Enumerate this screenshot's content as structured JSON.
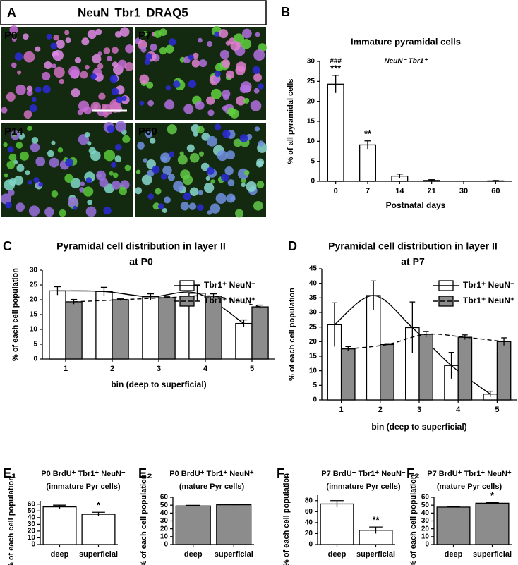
{
  "image_panel": {
    "label": "A",
    "legend": [
      {
        "text": "NeuN",
        "color": "#6ee33a"
      },
      {
        "text": "Tbr1",
        "color": "#e8336a"
      },
      {
        "text": "DRAQ5",
        "color": "#3a3ae0"
      }
    ],
    "images": [
      "P0",
      "P7",
      "P14",
      "P60"
    ]
  },
  "chart_data": [
    {
      "panel": "B",
      "type": "bar",
      "title": "Immature pyramidal cells",
      "subtitle": "NeuN⁻ Tbr1⁺",
      "x_label": "Postnatal days",
      "y_label": "% of all pyramidal cells",
      "categories": [
        "0",
        "7",
        "14",
        "21",
        "30",
        "60"
      ],
      "values": [
        24.3,
        9.1,
        1.3,
        0.2,
        0,
        0.1
      ],
      "errors": [
        2.2,
        1.0,
        0.5,
        0.2,
        0,
        0.1
      ],
      "significance": [
        "***",
        "**",
        null,
        null,
        null,
        null
      ],
      "significance_upper": [
        "###",
        null,
        null,
        null,
        null,
        null
      ],
      "color": "#ffffff",
      "ylim": [
        0,
        30
      ],
      "yticks": [
        0,
        5,
        10,
        15,
        20,
        25,
        30
      ]
    },
    {
      "panel": "C",
      "type": "bar",
      "title": "Pyramidal cell distribution in layer II",
      "subtitle": "at P0",
      "x_label": "bin (deep to superficial)",
      "y_label": "% of each cell population",
      "categories": [
        "1",
        "2",
        "3",
        "4",
        "5"
      ],
      "series": [
        {
          "name": "Tbr1⁺ NeuN⁻",
          "color": "#ffffff",
          "line_style": "solid",
          "values": [
            23,
            22.8,
            21,
            22.2,
            12
          ],
          "errors": [
            1.4,
            1.4,
            1.0,
            2.8,
            1.2
          ]
        },
        {
          "name": "Tbr1⁺ NeuN⁺",
          "color": "#8c8c8c",
          "line_style": "dashed",
          "values": [
            19.3,
            20,
            20.7,
            21.2,
            17.6
          ],
          "errors": [
            0.8,
            0.3,
            0.3,
            0.8,
            0.6
          ]
        }
      ],
      "ylim": [
        0,
        30
      ],
      "yticks": [
        0,
        5,
        10,
        15,
        20,
        25,
        30
      ]
    },
    {
      "panel": "D",
      "type": "bar",
      "title": "Pyramidal cell distribution in layer II",
      "subtitle": "at P7",
      "x_label": "bin (deep to superficial)",
      "y_label": "% of each cell population",
      "categories": [
        "1",
        "2",
        "3",
        "4",
        "5"
      ],
      "series": [
        {
          "name": "Tbr1⁺ NeuN⁻",
          "color": "#ffffff",
          "line_style": "solid",
          "values": [
            25.8,
            35.8,
            24.8,
            11.8,
            2
          ],
          "errors": [
            7.5,
            5,
            8.8,
            4.5,
            1
          ]
        },
        {
          "name": "Tbr1⁺ NeuN⁺",
          "color": "#8c8c8c",
          "line_style": "dashed",
          "values": [
            17.5,
            19,
            22.5,
            21.5,
            20
          ],
          "errors": [
            0.8,
            0.3,
            1.0,
            0.8,
            1.3
          ]
        }
      ],
      "ylim": [
        0,
        45
      ],
      "yticks": [
        0,
        5,
        10,
        15,
        20,
        25,
        30,
        35,
        40,
        45
      ]
    },
    {
      "panel": "E₁",
      "type": "bar",
      "title": "P0 BrdU⁺ Tbr1⁺ NeuN⁻",
      "subtitle": "(immature Pyr cells)",
      "y_label": "% of each cell population",
      "categories": [
        "deep",
        "superficial"
      ],
      "values": [
        56,
        45
      ],
      "errors": [
        2.5,
        3
      ],
      "significance": [
        null,
        "*"
      ],
      "color": "#ffffff",
      "ylim": [
        0,
        65
      ],
      "yticks": [
        0,
        10,
        20,
        30,
        40,
        50,
        60
      ]
    },
    {
      "panel": "E₂",
      "type": "bar",
      "title": "P0 BrdU⁺ Tbr1⁺ NeuN⁺",
      "subtitle": "(mature Pyr cells)",
      "y_label": "% of each cell population",
      "categories": [
        "deep",
        "superficial"
      ],
      "values": [
        49,
        50.5
      ],
      "errors": [
        0.8,
        0.8
      ],
      "color": "#8c8c8c",
      "ylim": [
        0,
        60
      ],
      "yticks": [
        0,
        10,
        20,
        30,
        40,
        50,
        60
      ]
    },
    {
      "panel": "F₁",
      "type": "bar",
      "title": "P7 BrdU⁺ Tbr1⁺ NeuN⁻",
      "subtitle": "(immature Pyr cells)",
      "y_label": "% of each cell population",
      "categories": [
        "deep",
        "superficial"
      ],
      "values": [
        74,
        26
      ],
      "errors": [
        6,
        6
      ],
      "significance": [
        null,
        "**"
      ],
      "color": "#ffffff",
      "ylim": [
        0,
        90
      ],
      "yticks": [
        0,
        20,
        40,
        60,
        80
      ]
    },
    {
      "panel": "F₂",
      "type": "bar",
      "title": "P7 BrdU⁺ Tbr1⁺ NeuN⁺",
      "subtitle": "(mature Pyr cells)",
      "y_label": "% of each cell population",
      "categories": [
        "deep",
        "superficial"
      ],
      "values": [
        47.5,
        52.5
      ],
      "errors": [
        0.5,
        0.8
      ],
      "significance": [
        null,
        "*"
      ],
      "color": "#8c8c8c",
      "ylim": [
        0,
        60
      ],
      "yticks": [
        0,
        10,
        20,
        30,
        40,
        50,
        60
      ]
    }
  ]
}
